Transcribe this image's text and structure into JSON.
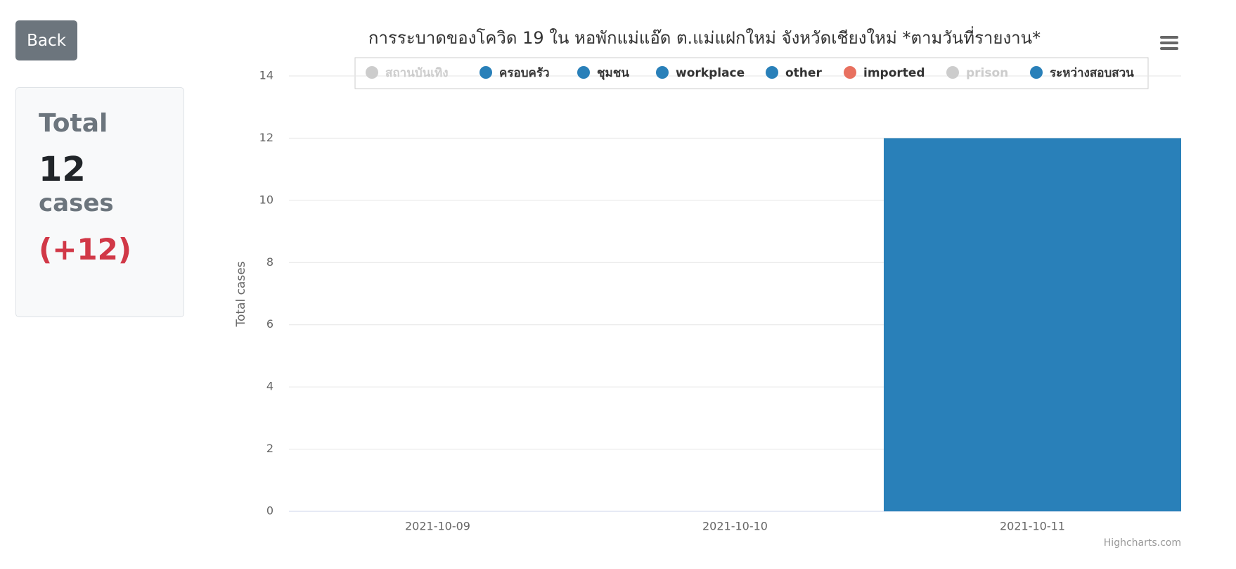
{
  "sidebar": {
    "button": "Back",
    "card": {
      "label": "Total",
      "value": "12",
      "unit": "cases",
      "change": "(+12)"
    }
  },
  "chart_data": {
    "type": "stacked-bar",
    "title": "การระบาดของโควิด 19 ใน หอพักแม่แอ๊ด ต.แม่แฝกใหม่ จังหวัดเชียงใหม่ *ตามวันที่รายงาน*",
    "y_label": "Total cases",
    "credits": "Highcharts.com",
    "categories": [
      "2021-10-09",
      "2021-10-10",
      "2021-10-11"
    ],
    "ylim": [
      0,
      14
    ],
    "yticks": [
      0,
      2,
      4,
      6,
      8,
      10,
      12,
      14
    ],
    "grid": true,
    "series": [
      {
        "name": "สถานบันเทิง",
        "color": "#cccccc",
        "visible": false,
        "values": [
          0,
          0,
          0
        ]
      },
      {
        "name": "ครอบครัว",
        "color": "#2980b9",
        "visible": true,
        "values": [
          0,
          0,
          0
        ]
      },
      {
        "name": "ชุมชน",
        "color": "#2980b9",
        "visible": true,
        "values": [
          0,
          0,
          0
        ]
      },
      {
        "name": "workplace",
        "color": "#2980b9",
        "visible": true,
        "values": [
          0,
          0,
          0
        ]
      },
      {
        "name": "other",
        "color": "#2980b9",
        "visible": true,
        "values": [
          0,
          0,
          0
        ]
      },
      {
        "name": "imported",
        "color": "#e8705f",
        "visible": true,
        "values": [
          0,
          0,
          0
        ]
      },
      {
        "name": "prison",
        "color": "#cccccc",
        "visible": false,
        "values": [
          0,
          0,
          0
        ]
      },
      {
        "name": "ระหว่างสอบสวน",
        "color": "#2980b9",
        "visible": true,
        "values": [
          0,
          0,
          12
        ]
      }
    ]
  }
}
